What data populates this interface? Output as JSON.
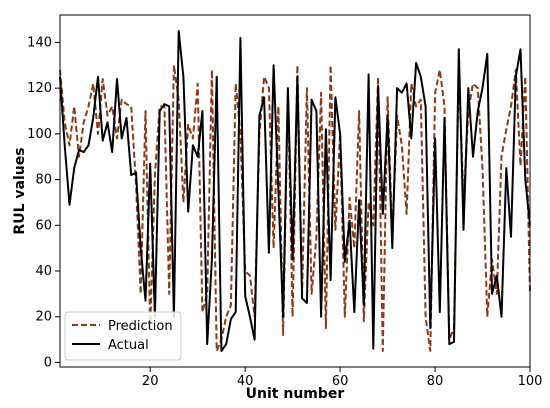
{
  "chart_data": {
    "type": "line",
    "xlabel": "Unit number",
    "ylabel": "RUL values",
    "xlim": [
      1,
      100
    ],
    "ylim": [
      -2,
      152
    ],
    "xticks": [
      20,
      40,
      60,
      80,
      100
    ],
    "yticks": [
      0,
      20,
      40,
      60,
      80,
      100,
      120,
      140
    ],
    "grid": false,
    "legend_position": "lower-left",
    "x": [
      1,
      2,
      3,
      4,
      5,
      6,
      7,
      8,
      9,
      10,
      11,
      12,
      13,
      14,
      15,
      16,
      17,
      18,
      19,
      20,
      21,
      22,
      23,
      24,
      25,
      26,
      27,
      28,
      29,
      30,
      31,
      32,
      33,
      34,
      35,
      36,
      37,
      38,
      39,
      40,
      41,
      42,
      43,
      44,
      45,
      46,
      47,
      48,
      49,
      50,
      51,
      52,
      53,
      54,
      55,
      56,
      57,
      58,
      59,
      60,
      61,
      62,
      63,
      64,
      65,
      66,
      67,
      68,
      69,
      70,
      71,
      72,
      73,
      74,
      75,
      76,
      77,
      78,
      79,
      80,
      81,
      82,
      83,
      84,
      85,
      86,
      87,
      88,
      89,
      90,
      91,
      92,
      93,
      94,
      95,
      96,
      97,
      98,
      99,
      100
    ],
    "series": [
      {
        "name": "Prediction",
        "color": "#8b3a1a",
        "style": "dashed",
        "values": [
          128,
          105,
          95,
          112,
          90,
          105,
          112,
          122,
          100,
          124,
          108,
          112,
          98,
          115,
          113,
          112,
          78,
          30,
          110,
          15,
          82,
          112,
          112,
          30,
          130,
          115,
          70,
          104,
          98,
          122,
          22,
          30,
          128,
          5,
          10,
          20,
          25,
          122,
          100,
          40,
          38,
          20,
          100,
          125,
          120,
          50,
          112,
          12,
          118,
          20,
          130,
          30,
          120,
          30,
          55,
          118,
          15,
          130,
          58,
          100,
          20,
          72,
          50,
          110,
          18,
          70,
          60,
          125,
          5,
          116,
          55,
          108,
          95,
          65,
          122,
          112,
          115,
          20,
          5,
          118,
          128,
          112,
          10,
          15,
          130,
          70,
          110,
          122,
          120,
          85,
          20,
          45,
          30,
          90,
          102,
          112,
          128,
          86,
          125,
          30
        ]
      },
      {
        "name": "Actual",
        "color": "#000000",
        "style": "solid",
        "values": [
          125,
          95,
          69,
          85,
          93,
          92,
          95,
          107,
          125,
          97,
          105,
          92,
          124,
          98,
          107,
          82,
          83,
          50,
          27,
          87,
          20,
          110,
          113,
          112,
          20,
          145,
          125,
          66,
          95,
          90,
          110,
          8,
          45,
          125,
          5,
          8,
          19,
          22,
          142,
          29,
          20,
          10,
          108,
          116,
          48,
          130,
          75,
          20,
          120,
          45,
          125,
          28,
          26,
          115,
          110,
          20,
          102,
          36,
          116,
          100,
          44,
          62,
          22,
          71,
          25,
          126,
          6,
          121,
          65,
          108,
          50,
          120,
          118,
          122,
          98,
          131,
          125,
          112,
          15,
          98,
          22,
          107,
          8,
          9,
          137,
          58,
          120,
          90,
          110,
          120,
          135,
          30,
          38,
          20,
          85,
          55,
          125,
          137,
          80,
          60
        ]
      }
    ]
  }
}
